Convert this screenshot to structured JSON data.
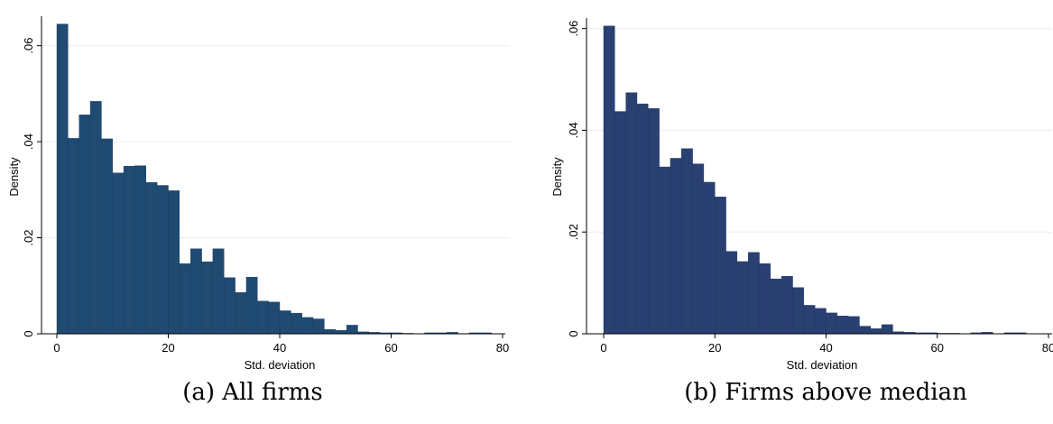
{
  "colors": {
    "bar_a": "#1f4a72",
    "bar_b": "#2a3f72",
    "bar_edge": "#1a3a5f",
    "grid": "#e9eef2",
    "axis": "#000000"
  },
  "captions": {
    "a": "(a) All firms",
    "b": "(b) Firms above median"
  },
  "chart_data": [
    {
      "type": "bar",
      "xlabel": "Std. deviation",
      "ylabel": "Density",
      "xlim": [
        0,
        80
      ],
      "ylim": [
        0,
        0.065
      ],
      "xticks": [
        "0",
        "20",
        "40",
        "60",
        "80"
      ],
      "xtick_values": [
        0,
        20,
        40,
        60,
        80
      ],
      "yticks": [
        "0",
        ".02",
        ".04",
        ".06"
      ],
      "ytick_values": [
        0,
        0.02,
        0.04,
        0.06
      ],
      "grid": true,
      "bin_width": 2,
      "bin_start": 0,
      "values": [
        0.0645,
        0.0407,
        0.0456,
        0.0484,
        0.0406,
        0.0335,
        0.0349,
        0.035,
        0.0315,
        0.0309,
        0.0298,
        0.0146,
        0.0177,
        0.015,
        0.0177,
        0.0117,
        0.0086,
        0.0118,
        0.0068,
        0.0066,
        0.0048,
        0.0043,
        0.0034,
        0.0031,
        0.0009,
        0.0007,
        0.0018,
        0.0004,
        0.0003,
        0.0002,
        0.0002,
        0.0001,
        0,
        0.0002,
        0.0002,
        0.0003,
        0,
        0.0002,
        0.0002,
        0
      ]
    },
    {
      "type": "bar",
      "xlabel": "Std. deviation",
      "ylabel": "Density",
      "xlim": [
        0,
        80
      ],
      "ylim": [
        0,
        0.061
      ],
      "xticks": [
        "0",
        "20",
        "40",
        "60",
        "80"
      ],
      "xtick_values": [
        0,
        20,
        40,
        60,
        80
      ],
      "yticks": [
        "0",
        ".02",
        ".04",
        ".06"
      ],
      "ytick_values": [
        0,
        0.02,
        0.04,
        0.06
      ],
      "grid": true,
      "bin_width": 2,
      "bin_start": 0,
      "values": [
        0.0605,
        0.0437,
        0.0474,
        0.0452,
        0.0443,
        0.0328,
        0.0345,
        0.0364,
        0.0334,
        0.0298,
        0.0269,
        0.0162,
        0.0142,
        0.016,
        0.0138,
        0.0108,
        0.0113,
        0.0091,
        0.0056,
        0.005,
        0.0041,
        0.0035,
        0.0034,
        0.0015,
        0.001,
        0.0018,
        0.0004,
        0.0003,
        0.0002,
        0.0002,
        0.0001,
        0.0001,
        0,
        0.0002,
        0.0003,
        0,
        0.0002,
        0.0002,
        0,
        0
      ]
    }
  ]
}
